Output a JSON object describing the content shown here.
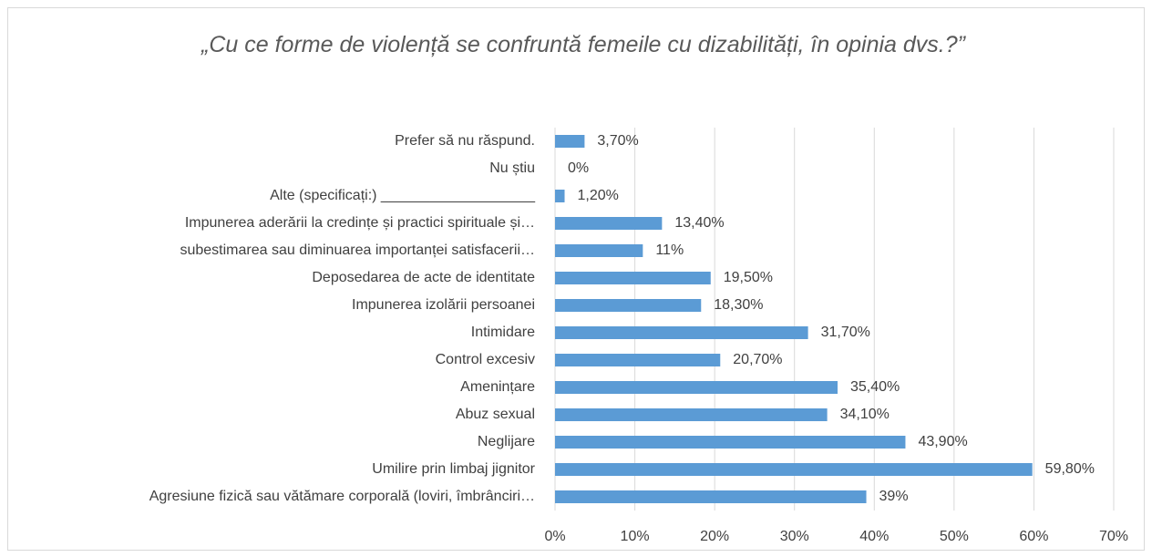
{
  "chart_data": {
    "type": "hbar",
    "title": "„Cu ce forme de violență se confruntă femeile cu dizabilități, în opinia dvs.?”",
    "categories": [
      "Prefer să nu răspund.",
      "Nu știu",
      "Alte (specificați:) ___________________",
      "Impunerea aderării la credințe și practici spirituale și…",
      "subestimarea sau diminuarea importanței satisfacerii…",
      "Deposedarea de acte de identitate",
      "Impunerea izolării persoanei",
      "Intimidare",
      "Control excesiv",
      "Amenințare",
      "Abuz sexual",
      "Neglijare",
      "Umilire prin limbaj jignitor",
      "Agresiune fizică sau vătămare corporală (loviri, îmbrânciri…"
    ],
    "values": [
      3.7,
      0,
      1.2,
      13.4,
      11,
      19.5,
      18.3,
      31.7,
      20.7,
      35.4,
      34.1,
      43.9,
      59.8,
      39
    ],
    "value_labels": [
      "3,70%",
      "0%",
      "1,20%",
      "13,40%",
      "11%",
      "19,50%",
      "18,30%",
      "31,70%",
      "20,70%",
      "35,40%",
      "34,10%",
      "43,90%",
      "59,80%",
      "39%"
    ],
    "color": "#5b9bd5",
    "xlim": [
      0,
      70
    ],
    "xticks": [
      {
        "value": 0,
        "label": "0%"
      },
      {
        "value": 10,
        "label": "10%"
      },
      {
        "value": 20,
        "label": "20%"
      },
      {
        "value": 30,
        "label": "30%"
      },
      {
        "value": 40,
        "label": "40%"
      },
      {
        "value": 50,
        "label": "50%"
      },
      {
        "value": 60,
        "label": "60%"
      },
      {
        "value": 70,
        "label": "70%"
      }
    ],
    "grid": true
  }
}
